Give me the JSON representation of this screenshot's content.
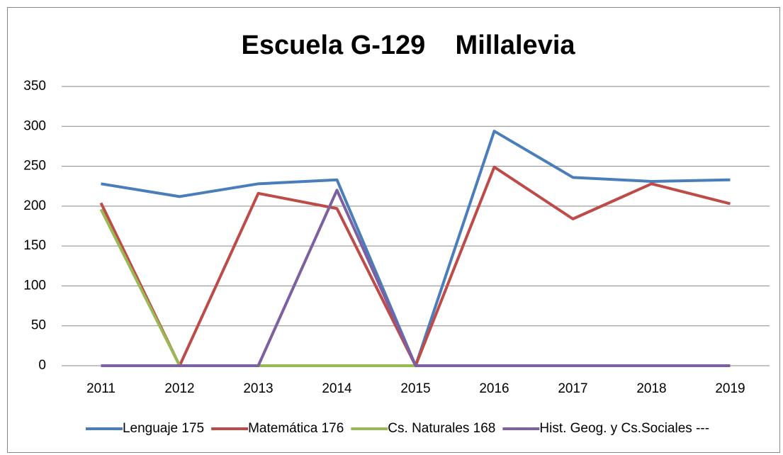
{
  "chart_data": {
    "type": "line",
    "title": "Escuela G-129    Millalevia",
    "categories": [
      "2011",
      "2012",
      "2013",
      "2014",
      "2015",
      "2016",
      "2017",
      "2018",
      "2019"
    ],
    "series": [
      {
        "name": "Lenguaje 175",
        "color": "#4a7ebb",
        "values": [
          228,
          212,
          228,
          233,
          0,
          294,
          236,
          231,
          233
        ]
      },
      {
        "name": "Matemática 176",
        "color": "#be4b48",
        "values": [
          204,
          0,
          216,
          197,
          0,
          249,
          184,
          228,
          203
        ]
      },
      {
        "name": "Cs. Naturales 168",
        "color": "#98b954",
        "values": [
          196,
          0,
          0,
          0,
          0,
          null,
          null,
          null,
          null
        ]
      },
      {
        "name": "Hist. Geog. y Cs.Sociales ---",
        "color": "#7d60a0",
        "values": [
          0,
          0,
          0,
          220,
          0,
          0,
          0,
          0,
          0
        ]
      }
    ],
    "ylim": [
      0,
      350
    ],
    "yticks": [
      0,
      50,
      100,
      150,
      200,
      250,
      300,
      350
    ],
    "grid": true,
    "legend": "bottom"
  }
}
